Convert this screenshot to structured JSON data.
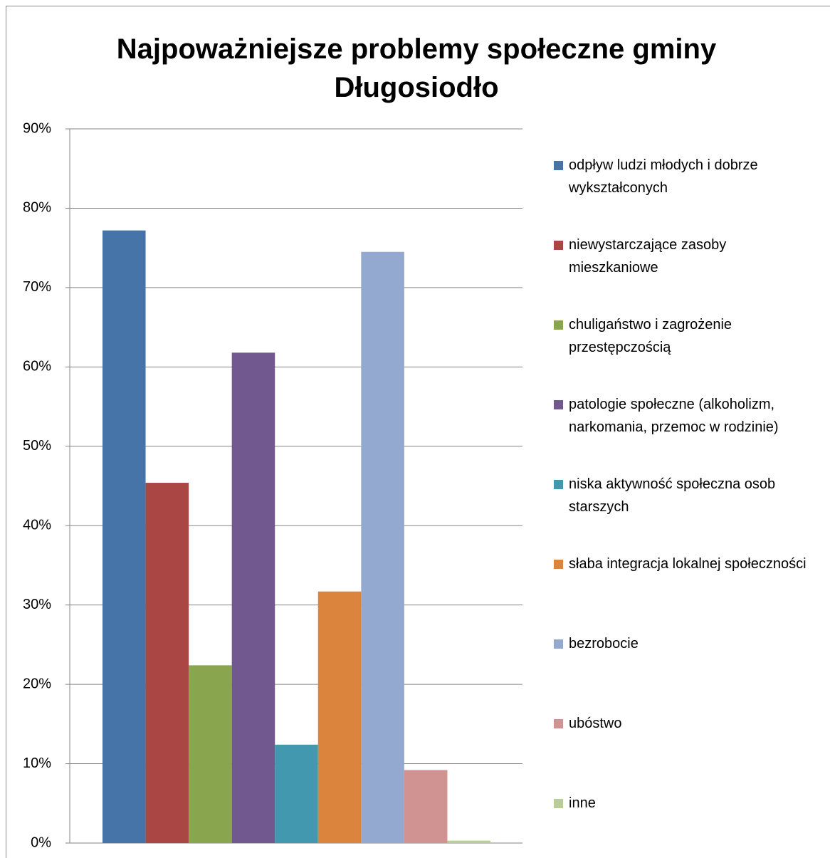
{
  "chart_data": {
    "type": "bar",
    "title": "Najpoważniejsze problemy społeczne gminy Długosiodło",
    "ylim": [
      0,
      90
    ],
    "yticks": [
      {
        "value": 0,
        "label": "0%"
      },
      {
        "value": 10,
        "label": "10%"
      },
      {
        "value": 20,
        "label": "20%"
      },
      {
        "value": 30,
        "label": "30%"
      },
      {
        "value": 40,
        "label": "40%"
      },
      {
        "value": 50,
        "label": "50%"
      },
      {
        "value": 60,
        "label": "60%"
      },
      {
        "value": 70,
        "label": "70%"
      },
      {
        "value": 80,
        "label": "80%"
      },
      {
        "value": 90,
        "label": "90%"
      }
    ],
    "grid": true,
    "legend": "right",
    "series": [
      {
        "name": "odpływ ludzi młodych i dobrze wykształconych",
        "color": "#4674a9",
        "values": [
          77.2
        ]
      },
      {
        "name": "niewystarczające zasoby mieszkaniowe",
        "color": "#aa4644",
        "values": [
          45.4
        ]
      },
      {
        "name": "chuligaństwo i zagrożenie przestępczością",
        "color": "#89a54e",
        "values": [
          22.4
        ]
      },
      {
        "name": "patologie społeczne (alkoholizm, narkomania, przemoc w rodzinie)",
        "color": "#71588f",
        "values": [
          61.8
        ]
      },
      {
        "name": "niska aktywność społeczna osob starszych",
        "color": "#4198af",
        "values": [
          12.4
        ]
      },
      {
        "name": "słaba integracja lokalnej społeczności",
        "color": "#db843d",
        "values": [
          31.7
        ]
      },
      {
        "name": "bezrobocie",
        "color": "#93a9cf",
        "values": [
          74.5
        ]
      },
      {
        "name": "ubóstwo",
        "color": "#d19392",
        "values": [
          9.2
        ]
      },
      {
        "name": "inne",
        "color": "#b9cd96",
        "values": [
          0.3
        ]
      }
    ]
  }
}
